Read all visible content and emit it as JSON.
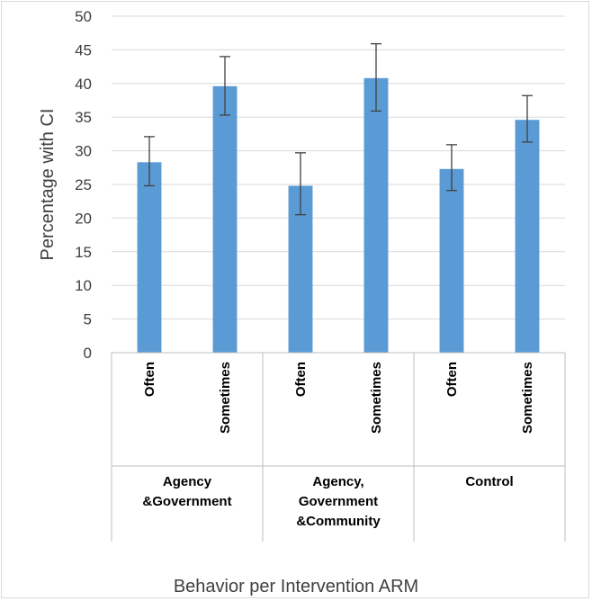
{
  "chart_data": {
    "type": "bar",
    "title": "",
    "ylabel": "Percentage with CI",
    "xlabel": "Behavior per Intervention ARM",
    "ylim": [
      0,
      50
    ],
    "yticks": [
      0,
      5,
      10,
      15,
      20,
      25,
      30,
      35,
      40,
      45,
      50
    ],
    "grid": true,
    "bar_color": "#5b9bd5",
    "errorbar_color": "#404040",
    "groups": [
      {
        "label_lines": [
          "Agency",
          "&Government"
        ],
        "categories": [
          "Often",
          "Sometimes"
        ]
      },
      {
        "label_lines": [
          "Agency,",
          "Government",
          "&Community"
        ],
        "categories": [
          "Often",
          "Sometimes"
        ]
      },
      {
        "label_lines": [
          "Control"
        ],
        "categories": [
          "Often",
          "Sometimes"
        ]
      }
    ],
    "series": [
      {
        "values": [
          28.3,
          39.6,
          24.8,
          40.8,
          27.3,
          34.6
        ],
        "ci_low": [
          24.8,
          35.3,
          20.5,
          35.9,
          24.1,
          31.3
        ],
        "ci_high": [
          32.1,
          44.0,
          29.7,
          45.9,
          30.9,
          38.2
        ]
      }
    ]
  }
}
